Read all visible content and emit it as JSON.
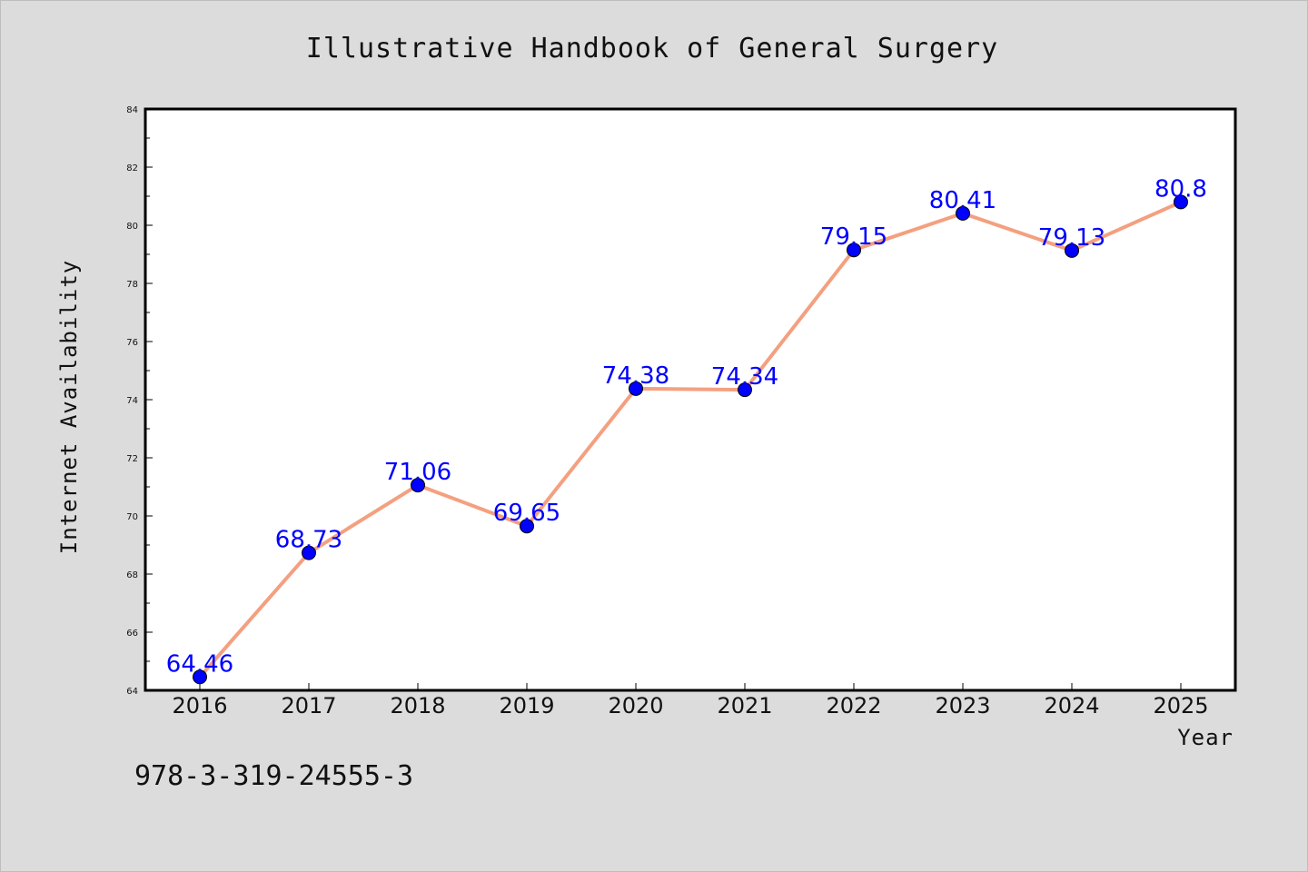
{
  "colors": {
    "background": "#dcdcdc",
    "plot_background": "#ffffff",
    "line": "#f4a080",
    "marker": "#0000ff",
    "label": "#0000ff"
  },
  "footer": {
    "isbn": "978-3-319-24555-3"
  },
  "chart_data": {
    "type": "line",
    "title": "Illustrative Handbook of General Surgery",
    "xlabel": "Year",
    "ylabel": "Internet Availability",
    "categories": [
      "2016",
      "2017",
      "2018",
      "2019",
      "2020",
      "2021",
      "2022",
      "2023",
      "2024",
      "2025"
    ],
    "series": [
      {
        "values": [
          64.46,
          68.73,
          71.06,
          69.65,
          74.38,
          74.34,
          79.15,
          80.41,
          79.13,
          80.8
        ]
      }
    ],
    "data_labels": [
      "64.46",
      "68.73",
      "71.06",
      "69.65",
      "74.38",
      "74.34",
      "79.15",
      "80.41",
      "79.13",
      "80.8"
    ],
    "ylim": [
      64,
      84
    ],
    "yticks": [
      "64",
      "66",
      "68",
      "70",
      "72",
      "74",
      "76",
      "78",
      "80",
      "82",
      "84"
    ],
    "grid": false,
    "legend": "none"
  }
}
